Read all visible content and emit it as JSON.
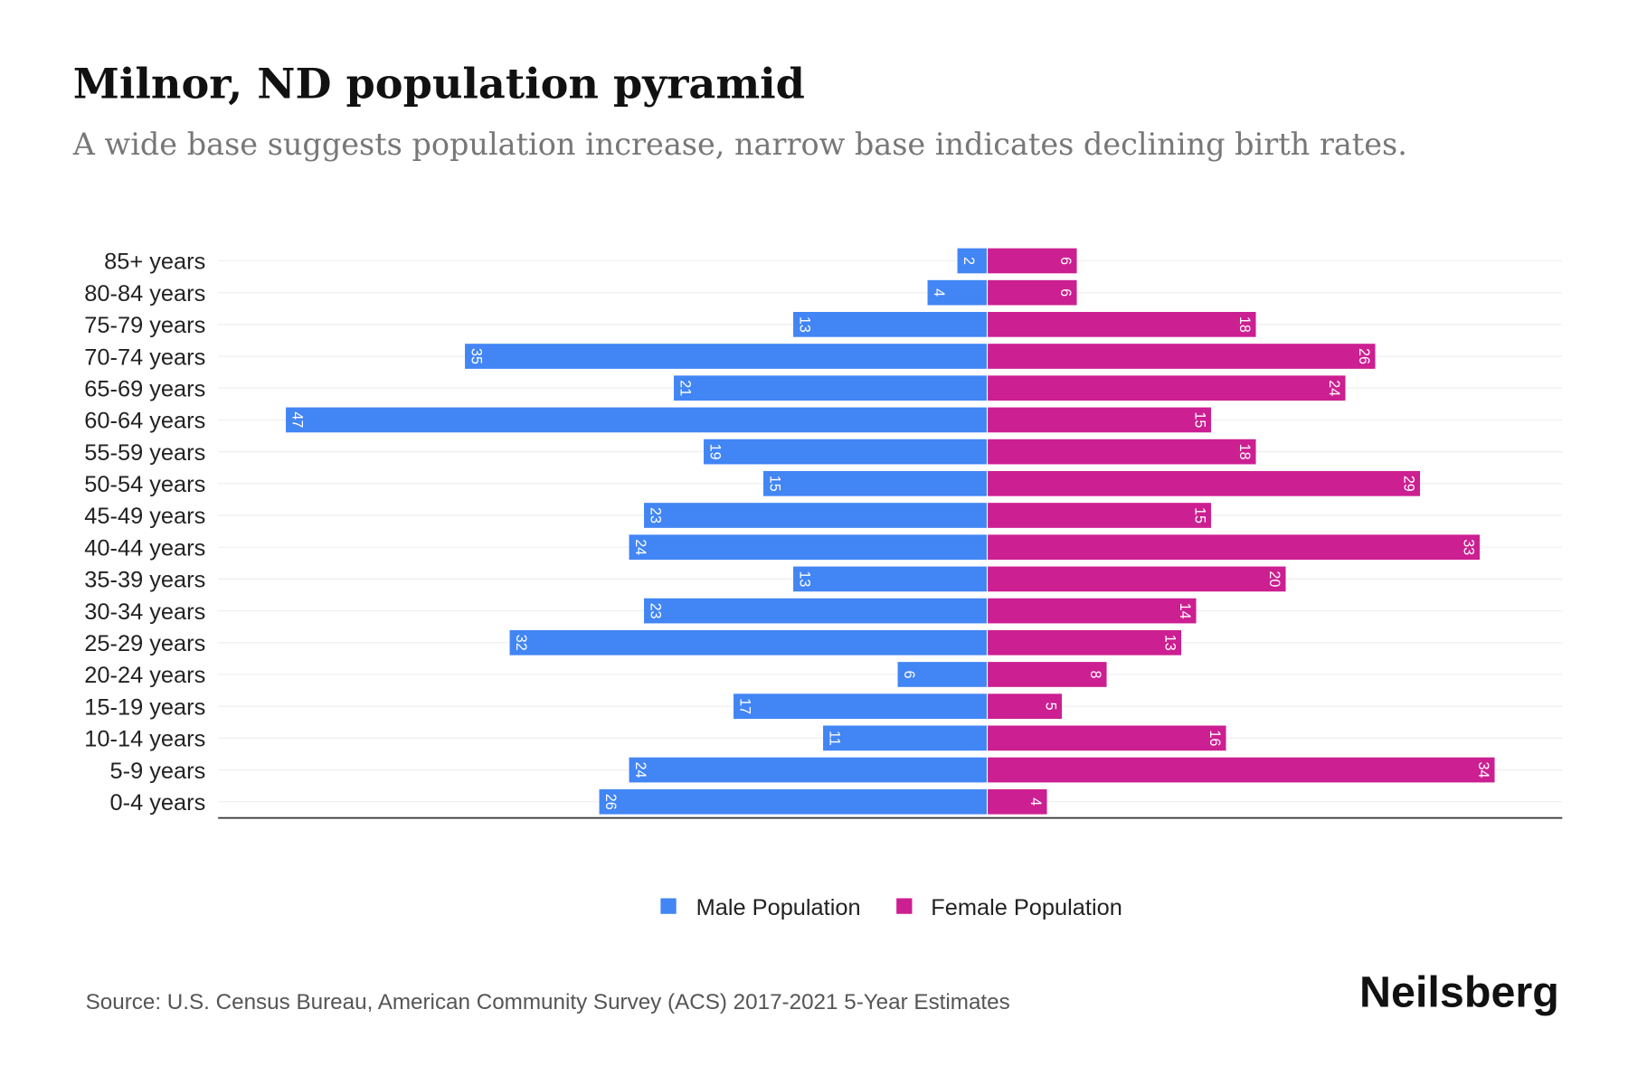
{
  "chart_data": {
    "type": "bar",
    "orientation": "horizontal-pyramid",
    "title": "Milnor, ND population pyramid",
    "subtitle": "A wide base suggests population increase, narrow base indicates declining birth rates.",
    "categories": [
      "85+ years",
      "80-84 years",
      "75-79 years",
      "70-74 years",
      "65-69 years",
      "60-64 years",
      "55-59 years",
      "50-54 years",
      "45-49 years",
      "40-44 years",
      "35-39 years",
      "30-34 years",
      "25-29 years",
      "20-24 years",
      "15-19 years",
      "10-14 years",
      "5-9 years",
      "0-4 years"
    ],
    "series": [
      {
        "name": "Male Population",
        "color": "#4285f4",
        "values": [
          2,
          4,
          13,
          35,
          21,
          47,
          19,
          15,
          23,
          24,
          13,
          23,
          32,
          6,
          17,
          11,
          24,
          26
        ]
      },
      {
        "name": "Female Population",
        "color": "#cc1f91",
        "values": [
          6,
          6,
          18,
          26,
          24,
          15,
          18,
          29,
          15,
          33,
          20,
          14,
          13,
          8,
          5,
          16,
          34,
          4
        ]
      }
    ],
    "legend_position": "bottom-center",
    "grid": true
  },
  "source": "Source: U.S. Census Bureau, American Community Survey (ACS) 2017-2021 5-Year Estimates",
  "brand": "Neilsberg"
}
